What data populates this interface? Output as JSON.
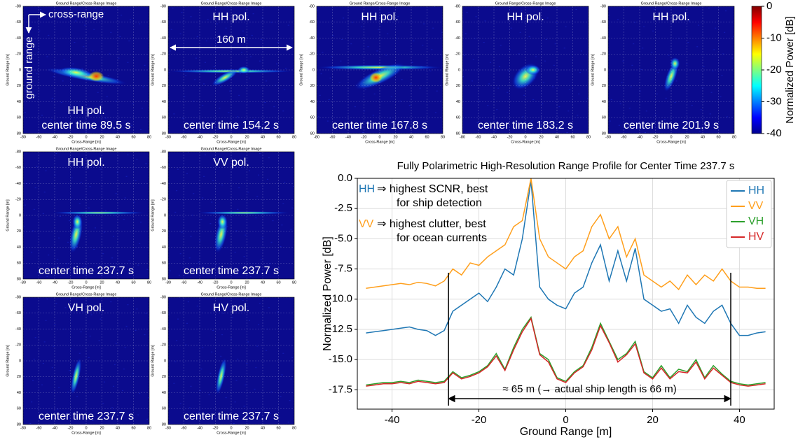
{
  "chart_data": [
    {
      "type": "image-grid",
      "image_axes": {
        "title": "Ground Range/Cross-Range Image",
        "xlabel": "Cross-Range [m]",
        "ylabel": "Ground Range [m]",
        "xlim": [
          -80,
          80
        ],
        "ylim": [
          -80,
          80
        ],
        "y_inverted": true,
        "xticks": [
          -80,
          -60,
          -40,
          -20,
          0,
          20,
          40,
          60,
          80
        ],
        "yticks": [
          -80,
          -60,
          -40,
          -20,
          0,
          20,
          40,
          60,
          80
        ]
      },
      "panels": [
        {
          "pol": "HH pol.",
          "time": "center time 89.5 s"
        },
        {
          "pol": "HH pol.",
          "time": "center time 154.2 s"
        },
        {
          "pol": "HH pol.",
          "time": "center time 167.8 s"
        },
        {
          "pol": "HH pol.",
          "time": "center time 183.2 s"
        },
        {
          "pol": "HH pol.",
          "time": "center time 201.9 s"
        },
        {
          "pol": "HH pol.",
          "time": "center time 237.7 s"
        },
        {
          "pol": "VV pol.",
          "time": "center time 237.7 s"
        },
        {
          "pol": "VH pol.",
          "time": "center time 237.7 s"
        },
        {
          "pol": "HV pol.",
          "time": "center time 237.7 s"
        }
      ],
      "annotations": {
        "cross_range": "cross-range",
        "ground_range": "ground range",
        "width": "160 m"
      },
      "colorbar": {
        "label": "Normalized Power [dB]",
        "lim": [
          -40,
          0
        ],
        "ticks": [
          0,
          -10,
          -20,
          -30,
          -40
        ],
        "colormap": "jet"
      }
    },
    {
      "type": "line",
      "title": "Fully Polarimetric High-Resolution Range Profile for Center Time 237.7 s",
      "xlabel": "Ground Range [m]",
      "ylabel": "Normalized Power [dB]",
      "xlim": [
        -48,
        48
      ],
      "ylim": [
        -19.1,
        0
      ],
      "xticks": [
        -40,
        -20,
        0,
        20,
        40
      ],
      "yticks": [
        {
          "value": 0,
          "label": "0.0"
        },
        {
          "value": -2.5,
          "label": "-2.5"
        },
        {
          "value": -5,
          "label": "-5.0"
        },
        {
          "value": -7.5,
          "label": "-7.5"
        },
        {
          "value": -10,
          "label": "-10.0"
        },
        {
          "value": -12.5,
          "label": "-12.5"
        },
        {
          "value": -15,
          "label": "-15.0"
        },
        {
          "value": -17.5,
          "label": "-17.5"
        }
      ],
      "grid": true,
      "legend": "upper right",
      "x": [
        -46,
        -44,
        -42,
        -40,
        -38,
        -36,
        -34,
        -32,
        -30,
        -28,
        -26,
        -24,
        -22,
        -20,
        -18,
        -16,
        -14,
        -12,
        -10,
        -8,
        -6,
        -4,
        -2,
        0,
        2,
        4,
        6,
        8,
        10,
        12,
        14,
        16,
        18,
        20,
        22,
        24,
        26,
        28,
        30,
        32,
        34,
        36,
        38,
        40,
        42,
        44,
        46
      ],
      "series": [
        {
          "name": "HH",
          "color": "#1f77b4",
          "values": [
            -12.8,
            -12.7,
            -12.6,
            -12.5,
            -12.4,
            -12.3,
            -12.5,
            -12.6,
            -13.0,
            -12.6,
            -11.0,
            -10.5,
            -10.0,
            -9.5,
            -10.2,
            -9.0,
            -7.5,
            -8.0,
            -5.0,
            -0.2,
            -9.0,
            -10.0,
            -10.5,
            -10.8,
            -9.5,
            -9.0,
            -7.0,
            -5.5,
            -8.5,
            -6.0,
            -8.5,
            -5.8,
            -10.0,
            -10.5,
            -11.0,
            -10.8,
            -12.0,
            -10.5,
            -11.5,
            -12.0,
            -11.0,
            -10.5,
            -12.0,
            -13.0,
            -13.0,
            -12.8,
            -12.7
          ]
        },
        {
          "name": "VV",
          "color": "#ff9f1c",
          "values": [
            -9.1,
            -9.0,
            -8.9,
            -8.8,
            -8.7,
            -8.8,
            -8.6,
            -8.7,
            -8.9,
            -8.5,
            -7.5,
            -8.0,
            -7.0,
            -7.2,
            -6.5,
            -6.0,
            -5.5,
            -4.0,
            -3.5,
            0.0,
            -5.0,
            -6.5,
            -7.0,
            -7.5,
            -6.5,
            -6.0,
            -4.0,
            -3.0,
            -5.0,
            -4.0,
            -6.5,
            -5.0,
            -8.0,
            -8.5,
            -9.0,
            -8.5,
            -9.2,
            -8.0,
            -8.8,
            -8.0,
            -8.5,
            -7.5,
            -8.5,
            -9.0,
            -9.0,
            -9.1,
            -9.1
          ]
        },
        {
          "name": "VH",
          "color": "#2ca02c",
          "values": [
            -17.1,
            -17.0,
            -16.9,
            -16.9,
            -16.8,
            -16.9,
            -16.7,
            -16.8,
            -16.9,
            -16.8,
            -16.0,
            -16.5,
            -16.3,
            -16.0,
            -15.5,
            -14.5,
            -15.8,
            -14.0,
            -12.5,
            -11.5,
            -14.5,
            -15.0,
            -16.5,
            -16.8,
            -16.0,
            -15.5,
            -14.0,
            -12.0,
            -13.5,
            -15.0,
            -14.5,
            -13.5,
            -16.0,
            -16.5,
            -15.5,
            -16.5,
            -15.8,
            -16.0,
            -15.0,
            -16.5,
            -15.5,
            -16.2,
            -16.8,
            -17.0,
            -17.1,
            -17.0,
            -16.9
          ]
        },
        {
          "name": "HV",
          "color": "#d62728",
          "values": [
            -17.2,
            -17.1,
            -17.0,
            -17.0,
            -16.9,
            -17.0,
            -16.8,
            -16.9,
            -17.0,
            -16.9,
            -16.1,
            -16.6,
            -16.4,
            -16.1,
            -15.6,
            -14.7,
            -15.9,
            -14.2,
            -12.7,
            -11.6,
            -14.6,
            -15.2,
            -16.6,
            -16.9,
            -16.1,
            -15.6,
            -14.2,
            -12.2,
            -13.6,
            -15.2,
            -14.6,
            -13.7,
            -16.1,
            -16.6,
            -15.7,
            -16.6,
            -16.0,
            -16.1,
            -15.2,
            -16.6,
            -15.7,
            -16.3,
            -16.9,
            -17.1,
            -17.2,
            -17.1,
            -17.0
          ]
        }
      ],
      "notes": [
        {
          "label": "HH",
          "color": "#1f77b4",
          "lines": [
            "⇒ highest SCNR, best",
            "for ship detection"
          ]
        },
        {
          "label": "VV",
          "color": "#ff9f1c",
          "lines": [
            "⇒ highest clutter, best",
            "for ocean currents"
          ]
        }
      ],
      "span": {
        "text": "≈ 65 m (→ actual ship length is 66 m)",
        "x_range": [
          -27,
          38
        ]
      }
    }
  ]
}
